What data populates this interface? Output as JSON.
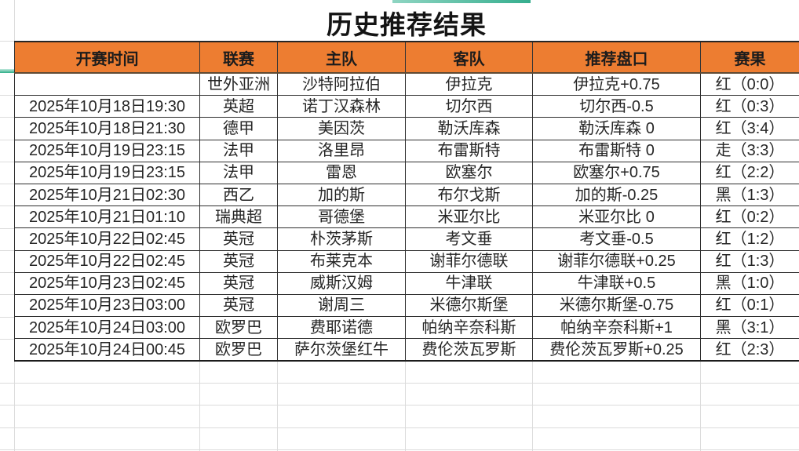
{
  "title": "历史推荐结果",
  "colors": {
    "header_bg": "#ED7D31",
    "result_red": "#b0352c",
    "result_gold": "#e7a33b",
    "result_black": "#2b2b2b",
    "accent_teal": "#35ae8e"
  },
  "table": {
    "headers": [
      "开赛时间",
      "联赛",
      "主队",
      "客队",
      "推荐盘口",
      "赛果"
    ],
    "rows": [
      {
        "time": "",
        "league": "世外亚洲",
        "home": "沙特阿拉伯",
        "away": "伊拉克",
        "handicap": "伊拉克+0.75",
        "result": "红（0:0）",
        "result_color": "red"
      },
      {
        "time": "2025年10月18日19:30",
        "league": "英超",
        "home": "诺丁汉森林",
        "away": "切尔西",
        "handicap": "切尔西-0.5",
        "result": "红（0:3）",
        "result_color": "red"
      },
      {
        "time": "2025年10月18日21:30",
        "league": "德甲",
        "home": "美因茨",
        "away": "勒沃库森",
        "handicap": "勒沃库森 0",
        "result": "红（3:4）",
        "result_color": "red"
      },
      {
        "time": "2025年10月19日23:15",
        "league": "法甲",
        "home": "洛里昂",
        "away": "布雷斯特",
        "handicap": "布雷斯特 0",
        "result": "走（3:3）",
        "result_color": "gold"
      },
      {
        "time": "2025年10月19日23:15",
        "league": "法甲",
        "home": "雷恩",
        "away": "欧塞尔",
        "handicap": "欧塞尔+0.75",
        "result": "红（2:2）",
        "result_color": "red"
      },
      {
        "time": "2025年10月21日02:30",
        "league": "西乙",
        "home": "加的斯",
        "away": "布尔戈斯",
        "handicap": "加的斯-0.25",
        "result": "黑（1:3）",
        "result_color": "black"
      },
      {
        "time": "2025年10月21日01:10",
        "league": "瑞典超",
        "home": "哥德堡",
        "away": "米亚尔比",
        "handicap": "米亚尔比 0",
        "result": "红（0:2）",
        "result_color": "red"
      },
      {
        "time": "2025年10月22日02:45",
        "league": "英冠",
        "home": "朴茨茅斯",
        "away": "考文垂",
        "handicap": "考文垂-0.5",
        "result": "红（1:2）",
        "result_color": "red"
      },
      {
        "time": "2025年10月22日02:45",
        "league": "英冠",
        "home": "布莱克本",
        "away": "谢菲尔德联",
        "handicap": "谢菲尔德联+0.25",
        "result": "红（1:3）",
        "result_color": "red"
      },
      {
        "time": "2025年10月23日02:45",
        "league": "英冠",
        "home": "威斯汉姆",
        "away": "牛津联",
        "handicap": "牛津联+0.5",
        "result": "黑（1:0）",
        "result_color": "black"
      },
      {
        "time": "2025年10月23日03:00",
        "league": "英冠",
        "home": "谢周三",
        "away": "米德尔斯堡",
        "handicap": "米德尔斯堡-0.75",
        "result": "红（0:1）",
        "result_color": "red"
      },
      {
        "time": "2025年10月24日03:00",
        "league": "欧罗巴",
        "home": "费耶诺德",
        "away": "帕纳辛奈科斯",
        "handicap": "帕纳辛奈科斯+1",
        "result": "黑（3:1）",
        "result_color": "black"
      },
      {
        "time": "2025年10月24日00:45",
        "league": "欧罗巴",
        "home": "萨尔茨堡红牛",
        "away": "费伦茨瓦罗斯",
        "handicap": "费伦茨瓦罗斯+0.25",
        "result": "红（2:3）",
        "result_color": "red"
      }
    ]
  }
}
